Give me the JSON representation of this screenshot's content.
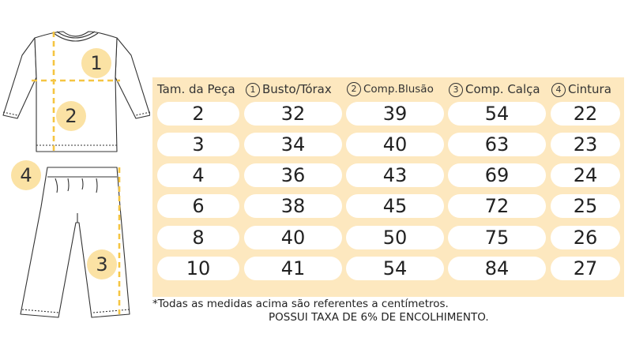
{
  "markers": [
    "1",
    "2",
    "3",
    "4"
  ],
  "headers": [
    {
      "num": "",
      "label": "Tam. da Peça"
    },
    {
      "num": "1",
      "label": "Busto/Tórax"
    },
    {
      "num": "2",
      "label": "Comp.Blusão"
    },
    {
      "num": "3",
      "label": "Comp. Calça"
    },
    {
      "num": "4",
      "label": "Cintura"
    }
  ],
  "rows": [
    [
      "2",
      "32",
      "39",
      "54",
      "22"
    ],
    [
      "3",
      "34",
      "40",
      "63",
      "23"
    ],
    [
      "4",
      "36",
      "43",
      "69",
      "24"
    ],
    [
      "6",
      "38",
      "45",
      "72",
      "25"
    ],
    [
      "8",
      "40",
      "50",
      "75",
      "26"
    ],
    [
      "10",
      "41",
      "54",
      "84",
      "27"
    ]
  ],
  "notes": {
    "units": "*Todas as medidas acima são referentes a centímetros.",
    "shrink": "POSSUI TAXA DE 6% DE ENCOLHIMENTO."
  },
  "colors": {
    "accent": "#fbe2a4",
    "panel": "#fde8bf",
    "guide": "#f5c542"
  }
}
